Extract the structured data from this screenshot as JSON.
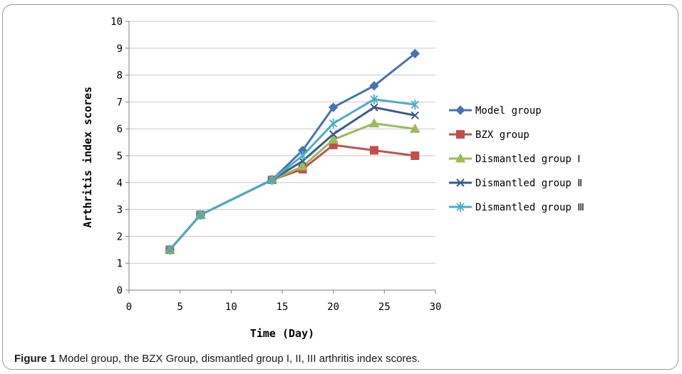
{
  "caption": {
    "label": "Figure 1",
    "text": " Model group, the BZX Group, dismantled group I, II, III arthritis index scores."
  },
  "chart_data": {
    "type": "line",
    "xlabel": "Time (Day)",
    "ylabel": "Arthritis index scores",
    "xlim": [
      0,
      30
    ],
    "ylim": [
      0,
      10
    ],
    "xticks": [
      0,
      5,
      10,
      15,
      20,
      25,
      30
    ],
    "yticks": [
      0,
      1,
      2,
      3,
      4,
      5,
      6,
      7,
      8,
      9,
      10
    ],
    "grid": "horizontal",
    "legend_position": "right",
    "x": [
      4,
      7,
      14,
      17,
      20,
      24,
      28
    ],
    "series": [
      {
        "name": "Model group",
        "values": [
          1.5,
          2.8,
          4.1,
          5.2,
          6.8,
          7.6,
          8.8
        ],
        "color": "#4a72b0",
        "marker": "diamond"
      },
      {
        "name": "BZX group",
        "values": [
          1.5,
          2.8,
          4.1,
          4.5,
          5.4,
          5.2,
          5.0
        ],
        "color": "#c0504d",
        "marker": "square"
      },
      {
        "name": "Dismantled group Ⅰ",
        "values": [
          1.5,
          2.8,
          4.1,
          4.6,
          5.6,
          6.2,
          6.0
        ],
        "color": "#9bbb59",
        "marker": "triangle"
      },
      {
        "name": "Dismantled group Ⅱ",
        "values": [
          1.5,
          2.8,
          4.1,
          4.8,
          5.8,
          6.8,
          6.5
        ],
        "color": "#3a5a88",
        "marker": "x"
      },
      {
        "name": "Dismantled group Ⅲ",
        "values": [
          1.5,
          2.8,
          4.1,
          5.0,
          6.2,
          7.1,
          6.9
        ],
        "color": "#4bacc6",
        "marker": "star"
      }
    ]
  }
}
